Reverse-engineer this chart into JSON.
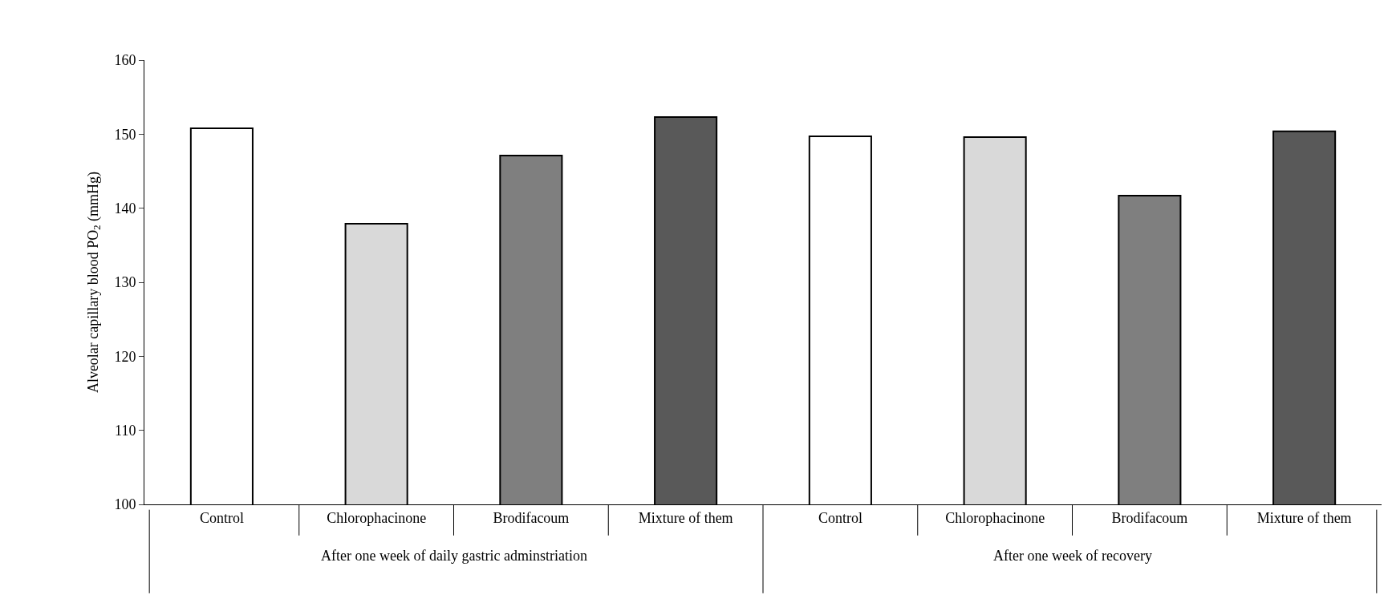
{
  "chart_data": {
    "type": "bar",
    "ylabel": "Alveolar capillary blood PO$_{2}$ (mmHg)",
    "categories": [
      "Control",
      "Chlorophacinone",
      "Brodifacoum",
      "Mixture of them",
      "Control",
      "Chlorophacinone",
      "Brodifacoum",
      "Mixture of them"
    ],
    "values": [
      150.8,
      137.9,
      147.1,
      152.3,
      149.7,
      149.6,
      141.7,
      150.4
    ],
    "colors": [
      "#ffffff",
      "#d9d9d9",
      "#7f7f7f",
      "#595959",
      "#ffffff",
      "#d9d9d9",
      "#7f7f7f",
      "#595959"
    ],
    "annotations": [
      "After one week of daily gastric adminstriation",
      "After one week of recovery"
    ],
    "ylim": [
      100,
      160
    ],
    "yticks": [
      100,
      110,
      120,
      130,
      140,
      150,
      160
    ]
  }
}
